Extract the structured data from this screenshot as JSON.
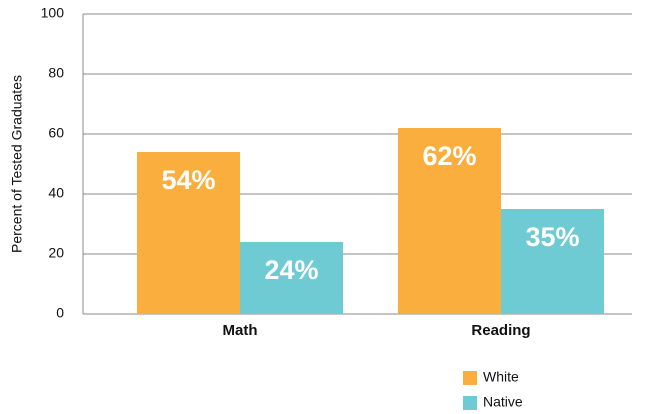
{
  "chart_data": {
    "type": "bar",
    "ylabel": "Percent of Tested Graduates",
    "categories": [
      "Math",
      "Reading"
    ],
    "series": [
      {
        "name": "White",
        "color": "#f9ae3e",
        "values": [
          54,
          62
        ],
        "value_labels": [
          "54%",
          "62%"
        ]
      },
      {
        "name": "Native",
        "color": "#6ecad3",
        "values": [
          24,
          35
        ],
        "value_labels": [
          "24%",
          "35%"
        ]
      }
    ],
    "ylim": [
      0,
      100
    ],
    "yticks": [
      0,
      20,
      40,
      60,
      80,
      100
    ],
    "grid": true,
    "legend": "bottom-right"
  }
}
